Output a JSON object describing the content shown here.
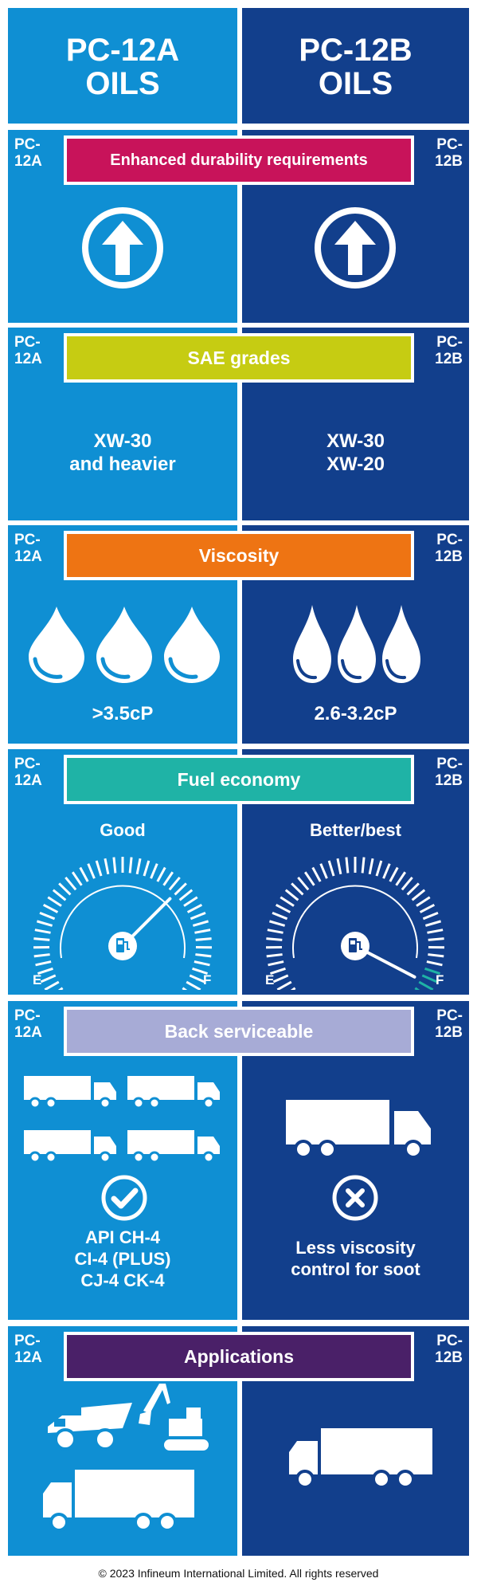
{
  "header": {
    "col_a_line1": "PC-12A",
    "col_a_line2": "OILS",
    "col_b_line1": "PC-12B",
    "col_b_line2": "OILS"
  },
  "tags": {
    "a_line1": "PC-",
    "a_line2": "12A",
    "b_line1": "PC-",
    "b_line2": "12B"
  },
  "colors": {
    "col_a": "#0f8fd3",
    "col_b": "#123f8c",
    "durability": "#c8135a",
    "sae": "#c6cc12",
    "viscosity": "#ee7413",
    "fuel": "#1fb3a6",
    "back": "#a7abd6",
    "applications": "#4a2068",
    "gauge_end": "#1fb3a6"
  },
  "sections": {
    "durability": {
      "title": "Enhanced durability requirements",
      "icon": "up-arrow-circle-icon"
    },
    "sae": {
      "title": "SAE grades",
      "a_line1": "XW-30",
      "a_line2": "and heavier",
      "b_line1": "XW-30",
      "b_line2": "XW-20"
    },
    "viscosity": {
      "title": "Viscosity",
      "a_value": ">3.5cP",
      "b_value": "2.6-3.2cP",
      "icon": "oil-drop-icon"
    },
    "fuel": {
      "title": "Fuel economy",
      "a_label": "Good",
      "b_label": "Better/best",
      "empty": "E",
      "full": "F",
      "a_level": 0.68,
      "b_level": 0.97
    },
    "back": {
      "title": "Back serviceable",
      "a_line1": "API CH-4",
      "a_line2": "CI-4 (PLUS)",
      "a_line3": "CJ-4 CK-4",
      "b_line1": "Less viscosity",
      "b_line2": "control for soot",
      "a_icon": "checkmark-circle-icon",
      "b_icon": "x-circle-icon"
    },
    "applications": {
      "title": "Applications"
    }
  },
  "footer": {
    "text": "© 2023 Infineum International Limited. All rights reserved"
  }
}
